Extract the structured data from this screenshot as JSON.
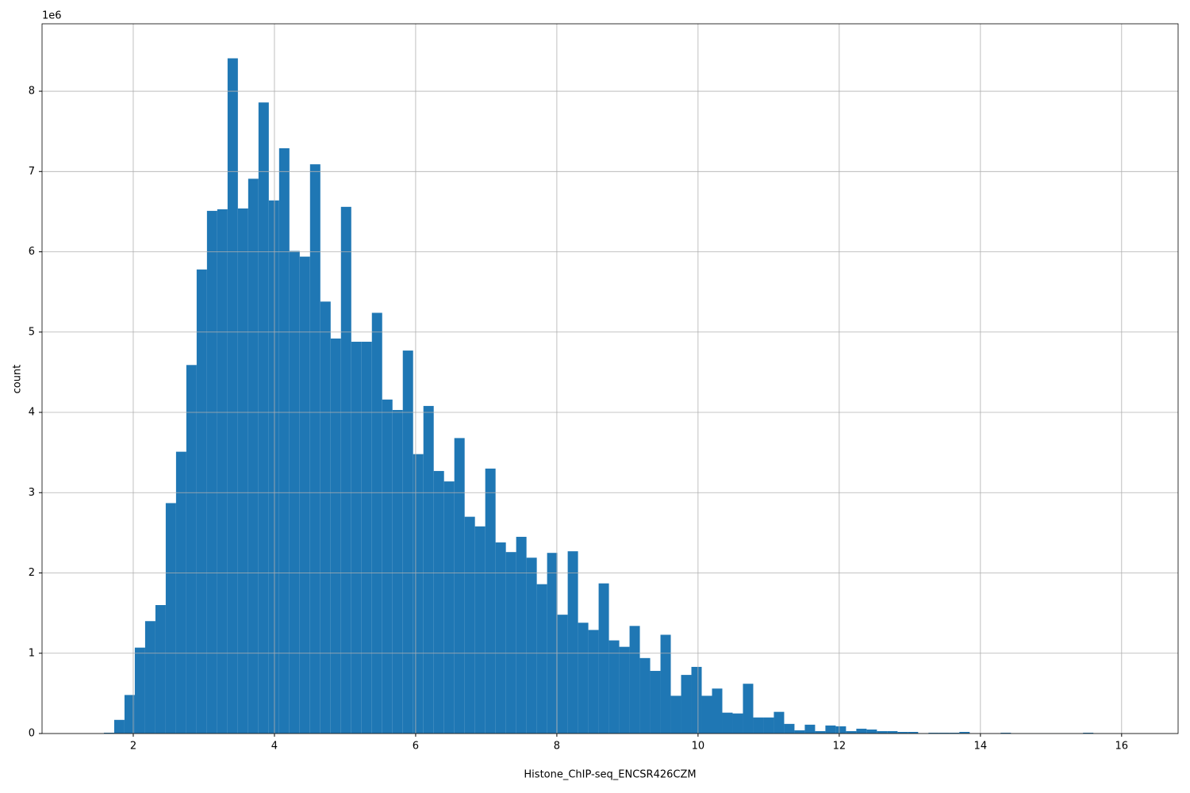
{
  "chart_data": {
    "type": "histogram",
    "x_label": "Histone_ChIP-seq_ENCSR426CZM",
    "y_label": "count",
    "y_offset_label": "1e6",
    "color": "#1f77b4",
    "grid": true,
    "bins": [
      1.584,
      1.73,
      1.876,
      2.022,
      2.168,
      2.314,
      2.46,
      2.606,
      2.752,
      2.898,
      3.044,
      3.19,
      3.336,
      3.482,
      3.628,
      3.774,
      3.92,
      4.066,
      4.212,
      4.358,
      4.504,
      4.65,
      4.796,
      4.942,
      5.088,
      5.234,
      5.38,
      5.526,
      5.672,
      5.818,
      5.964,
      6.11,
      6.256,
      6.402,
      6.548,
      6.694,
      6.84,
      6.986,
      7.132,
      7.278,
      7.424,
      7.57,
      7.716,
      7.862,
      8.008,
      8.154,
      8.3,
      8.446,
      8.592,
      8.738,
      8.884,
      9.03,
      9.176,
      9.322,
      9.468,
      9.614,
      9.76,
      9.906,
      10.052,
      10.198,
      10.344,
      10.49,
      10.636,
      10.782,
      10.928,
      11.074,
      11.22,
      11.366,
      11.512,
      11.658,
      11.804,
      11.95,
      12.096,
      12.242,
      12.388,
      12.534,
      12.68,
      12.826,
      12.972,
      13.118,
      13.264,
      13.41,
      13.556,
      13.702,
      13.848,
      13.994,
      14.14,
      14.286,
      14.432,
      14.578,
      14.724,
      14.87,
      15.016,
      15.162,
      15.308,
      15.454,
      15.6,
      15.746,
      15.892,
      16.038,
      16.184
    ],
    "values": [
      10000,
      170000,
      480000,
      1070000,
      1400000,
      1600000,
      2870000,
      3510000,
      4590000,
      5780000,
      6510000,
      6530000,
      8410000,
      6540000,
      6910000,
      7860000,
      6640000,
      7290000,
      6010000,
      5940000,
      7090000,
      5380000,
      4920000,
      6560000,
      4880000,
      4880000,
      5240000,
      4160000,
      4030000,
      4770000,
      3480000,
      4080000,
      3270000,
      3140000,
      3680000,
      2700000,
      2580000,
      3300000,
      2380000,
      2260000,
      2450000,
      2190000,
      1860000,
      2250000,
      1480000,
      2270000,
      1380000,
      1290000,
      1870000,
      1160000,
      1080000,
      1340000,
      940000,
      780000,
      1230000,
      470000,
      730000,
      830000,
      470000,
      560000,
      260000,
      250000,
      620000,
      200000,
      200000,
      270000,
      120000,
      40000,
      110000,
      30000,
      100000,
      90000,
      30000,
      60000,
      50000,
      30000,
      30000,
      20000,
      20000,
      5000,
      10000,
      10000,
      10000,
      20000,
      3000,
      3000,
      3000,
      10000,
      2000,
      2000,
      2000,
      2000,
      2000,
      2000,
      2000,
      10000,
      2000,
      1000,
      1000,
      1000
    ],
    "xlim": [
      0.708,
      16.8
    ],
    "xticks": [
      2,
      4,
      6,
      8,
      10,
      12,
      14,
      16
    ],
    "ylim": [
      0,
      8840000
    ],
    "yticks": [
      {
        "value": 0,
        "label": "0"
      },
      {
        "value": 1000000,
        "label": "1"
      },
      {
        "value": 2000000,
        "label": "2"
      },
      {
        "value": 3000000,
        "label": "3"
      },
      {
        "value": 4000000,
        "label": "4"
      },
      {
        "value": 5000000,
        "label": "5"
      },
      {
        "value": 6000000,
        "label": "6"
      },
      {
        "value": 7000000,
        "label": "7"
      },
      {
        "value": 8000000,
        "label": "8"
      }
    ]
  }
}
